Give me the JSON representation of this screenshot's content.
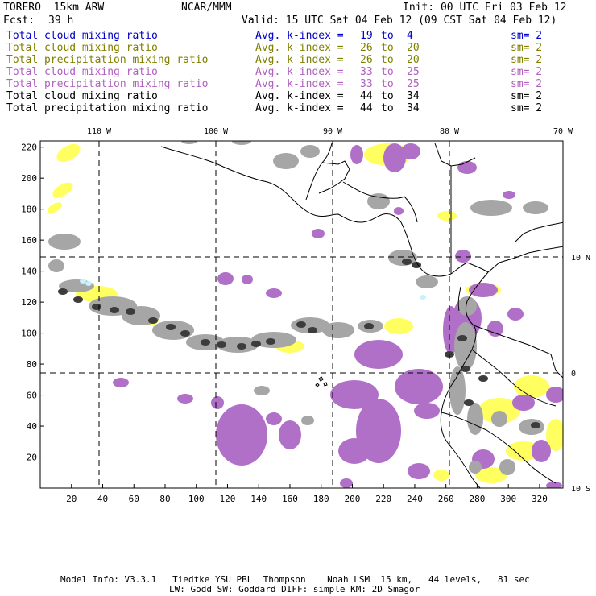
{
  "header": {
    "model": "TORERO  15km ARW",
    "org": "NCAR/MMM",
    "init": "Init: 00 UTC Fri 03 Feb 12",
    "fcst_label": "Fcst:",
    "fcst_value": "39 h",
    "valid": "Valid: 15 UTC Sat 04 Feb 12 (09 CST Sat 04 Feb 12)"
  },
  "fields": [
    {
      "name": "Total cloud mixing ratio",
      "kidx": "Avg. k-index =",
      "from": "19",
      "to_word": "to",
      "to": "4",
      "sm": "sm= 2",
      "color": "#0000c8"
    },
    {
      "name": "Total cloud mixing ratio",
      "kidx": "Avg. k-index =",
      "from": "26",
      "to_word": "to",
      "to": "20",
      "sm": "sm= 2",
      "color": "#808000"
    },
    {
      "name": "Total precipitation mixing ratio",
      "kidx": "Avg. k-index =",
      "from": "26",
      "to_word": "to",
      "to": "20",
      "sm": "sm= 2",
      "color": "#808000"
    },
    {
      "name": "Total cloud mixing ratio",
      "kidx": "Avg. k-index =",
      "from": "33",
      "to_word": "to",
      "to": "25",
      "sm": "sm= 2",
      "color": "#b060c0"
    },
    {
      "name": "Total precipitation mixing ratio",
      "kidx": "Avg. k-index =",
      "from": "33",
      "to_word": "to",
      "to": "25",
      "sm": "sm= 2",
      "color": "#b060c0"
    },
    {
      "name": "Total cloud mixing ratio",
      "kidx": "Avg. k-index =",
      "from": "44",
      "to_word": "to",
      "to": "34",
      "sm": "sm= 2",
      "color": "#000000"
    },
    {
      "name": "Total precipitation mixing ratio",
      "kidx": "Avg. k-index =",
      "from": "44",
      "to_word": "to",
      "to": "34",
      "sm": "sm= 2",
      "color": "#000000"
    }
  ],
  "map": {
    "x_ticks": [
      "20",
      "40",
      "60",
      "80",
      "100",
      "120",
      "140",
      "160",
      "180",
      "200",
      "220",
      "240",
      "260",
      "280",
      "300",
      "320"
    ],
    "y_ticks": [
      "20",
      "40",
      "60",
      "80",
      "100",
      "120",
      "140",
      "160",
      "180",
      "200",
      "220"
    ],
    "lon_labels": [
      "110 W",
      "100 W",
      "90 W",
      "80 W",
      "70 W"
    ],
    "lat_labels": [
      "10 N",
      "0",
      "10 S"
    ],
    "colors": {
      "grey": "#a6a6a6",
      "dark": "#3c3c3c",
      "purple": "#b070c8",
      "yellow": "#ffff60",
      "cyan": "#c8f0ff"
    }
  },
  "footer": {
    "line1": "Model Info: V3.3.1   Tiedtke YSU PBL  Thompson    Noah LSM  15 km,   44 levels,   81 sec",
    "line2": "LW: Godd SW: Goddard DIFF: simple KM: 2D Smagor"
  }
}
